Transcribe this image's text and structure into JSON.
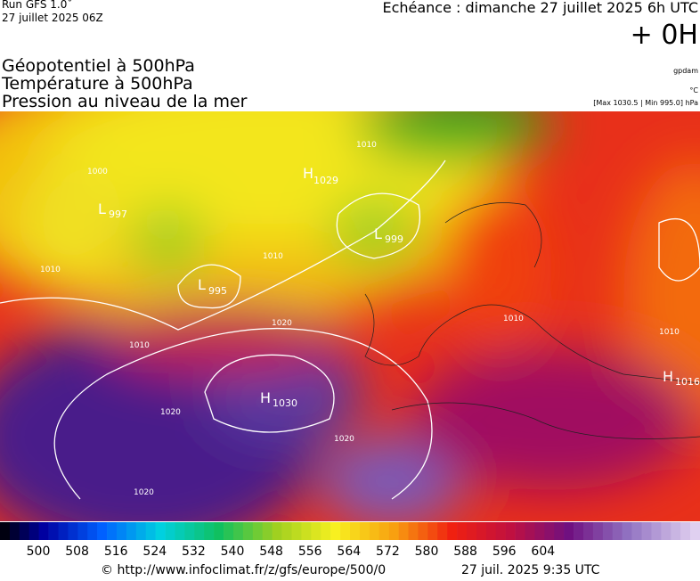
{
  "header": {
    "run": "Run GFS 1.0˚",
    "run_date": "27 juillet 2025 06Z",
    "echeance": "Echéance : dimanche 27 juillet 2025 6h UTC",
    "offset": "+ 0H",
    "titles": [
      "Géopotentiel à 500hPa",
      "Température à 500hPa",
      "Pression au niveau de la mer"
    ],
    "unit_geo": "gpdam",
    "unit_temp": "°C",
    "pressure_range": "[Max 1030.5 | Min 995.0] hPa"
  },
  "map": {
    "centers": [
      {
        "kind": "H",
        "value": "1029"
      },
      {
        "kind": "L",
        "value": "999"
      },
      {
        "kind": "L",
        "value": "995"
      },
      {
        "kind": "L",
        "value": "997"
      },
      {
        "kind": "H",
        "value": "1030"
      },
      {
        "kind": "H",
        "value": "1016"
      }
    ],
    "isobar_labels": [
      "1010",
      "1010",
      "1020",
      "1020",
      "1020",
      "1020",
      "1010",
      "1010",
      "1010",
      "1000",
      "1010"
    ]
  },
  "colorbar": {
    "ticks": [
      "500",
      "508",
      "516",
      "524",
      "532",
      "540",
      "548",
      "556",
      "564",
      "572",
      "580",
      "588",
      "596",
      "604"
    ]
  },
  "footer": {
    "url": "© http://www.infoclimat.fr/z/gfs/europe/500/0",
    "timestamp": "27 juil. 2025  9:35 UTC"
  }
}
